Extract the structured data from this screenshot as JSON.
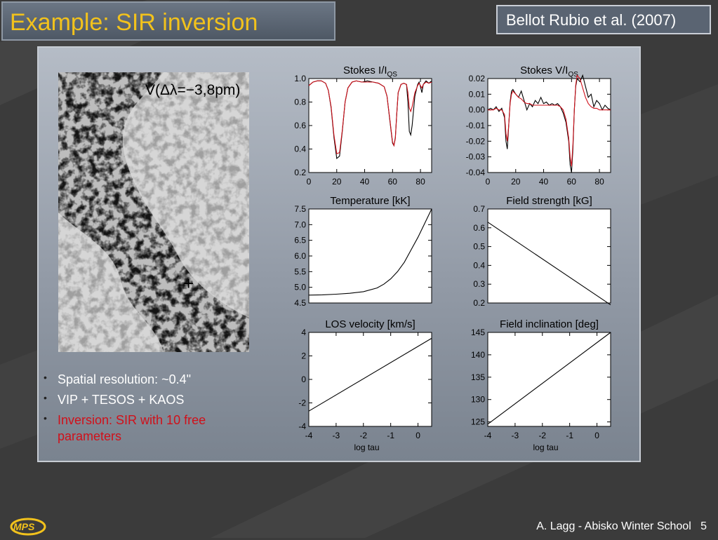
{
  "slide": {
    "title": "Example: SIR inversion",
    "reference": "Bellot Rubio et al. (2007)",
    "footer_text": "A. Lagg - Abisko Winter School",
    "page_number": "5",
    "logo_text": "MPS",
    "title_color": "#f2c21c",
    "bullet_highlight_color": "#d0101a"
  },
  "image": {
    "label": "V(Δλ=−3,8pm)",
    "marker": "+"
  },
  "bullets": [
    {
      "text": "Spatial resolution: ~0.4\"",
      "color": "#ffffff"
    },
    {
      "text": "VIP + TESOS + KAOS",
      "color": "#ffffff"
    },
    {
      "text": "Inversion: SIR with 10 free parameters",
      "color": "#d0101a"
    }
  ],
  "chart_data": [
    {
      "type": "line",
      "title": "Stokes I/I",
      "title_sub": "QS",
      "xlim": [
        0,
        88
      ],
      "ylim": [
        0.2,
        1.0
      ],
      "xticks": [
        0,
        20,
        40,
        60,
        80
      ],
      "yticks": [
        0.2,
        0.4,
        0.6,
        0.8,
        1.0
      ],
      "ytick_labels": [
        "0.2",
        "0.4",
        "0.6",
        "0.8",
        "1.0"
      ],
      "series": [
        {
          "color": "#000000",
          "x": [
            0,
            3,
            6,
            9,
            12,
            14,
            16,
            18,
            20,
            22,
            24,
            26,
            28,
            31,
            34,
            38,
            42,
            46,
            50,
            54,
            56,
            58,
            60,
            61,
            62,
            63,
            64,
            66,
            68,
            70,
            71,
            72,
            73,
            74,
            76,
            78,
            79,
            80,
            81,
            82,
            84,
            86,
            88
          ],
          "y": [
            0.94,
            0.97,
            0.98,
            0.98,
            0.96,
            0.9,
            0.75,
            0.5,
            0.32,
            0.34,
            0.55,
            0.8,
            0.92,
            0.97,
            0.98,
            0.97,
            0.98,
            0.97,
            0.96,
            0.93,
            0.85,
            0.65,
            0.45,
            0.43,
            0.5,
            0.7,
            0.88,
            0.95,
            0.96,
            0.95,
            0.8,
            0.55,
            0.52,
            0.6,
            0.85,
            0.95,
            0.97,
            0.93,
            0.88,
            0.95,
            0.98,
            0.96,
            0.98
          ]
        },
        {
          "color": "#d0101a",
          "x": [
            0,
            3,
            6,
            9,
            12,
            14,
            16,
            18,
            20,
            22,
            24,
            26,
            28,
            31,
            34,
            38,
            42,
            46,
            50,
            54,
            56,
            58,
            60,
            61,
            62,
            63,
            64,
            66,
            68,
            70,
            71,
            72,
            73,
            74,
            76,
            78,
            79,
            80,
            81,
            82,
            84,
            86,
            88
          ],
          "y": [
            0.94,
            0.97,
            0.98,
            0.98,
            0.96,
            0.9,
            0.76,
            0.52,
            0.36,
            0.37,
            0.56,
            0.8,
            0.92,
            0.97,
            0.98,
            0.97,
            0.97,
            0.97,
            0.96,
            0.93,
            0.85,
            0.66,
            0.46,
            0.43,
            0.49,
            0.7,
            0.88,
            0.95,
            0.96,
            0.95,
            0.88,
            0.75,
            0.72,
            0.76,
            0.88,
            0.94,
            0.96,
            0.94,
            0.92,
            0.95,
            0.97,
            0.96,
            0.97
          ]
        }
      ]
    },
    {
      "type": "line",
      "title": "Stokes V/I",
      "title_sub": "QS",
      "xlim": [
        0,
        88
      ],
      "ylim": [
        -0.04,
        0.02
      ],
      "xticks": [
        0,
        20,
        40,
        60,
        80
      ],
      "yticks": [
        -0.04,
        -0.03,
        -0.02,
        -0.01,
        0.0,
        0.01,
        0.02
      ],
      "ytick_labels": [
        "-0.04",
        "-0.03",
        "-0.02",
        "-0.01",
        "0.00",
        "0.01",
        "0.02"
      ],
      "series": [
        {
          "color": "#000000",
          "x": [
            0,
            2,
            4,
            6,
            8,
            10,
            12,
            13,
            14,
            15,
            16,
            17,
            18,
            20,
            22,
            24,
            26,
            28,
            30,
            32,
            34,
            36,
            38,
            40,
            42,
            44,
            46,
            48,
            50,
            52,
            54,
            56,
            58,
            59,
            60,
            61,
            62,
            63,
            64,
            66,
            68,
            70,
            72,
            74,
            76,
            78,
            80,
            82,
            84,
            86,
            88
          ],
          "y": [
            0.0,
            0.001,
            0.0,
            0.002,
            -0.001,
            0.001,
            -0.005,
            -0.02,
            -0.025,
            -0.01,
            0.005,
            0.012,
            0.013,
            0.01,
            0.008,
            0.012,
            0.006,
            0.0,
            0.004,
            0.002,
            0.006,
            0.004,
            0.008,
            0.004,
            0.005,
            0.003,
            0.004,
            0.003,
            0.004,
            0.002,
            -0.002,
            -0.008,
            -0.02,
            -0.035,
            -0.04,
            -0.025,
            0.0,
            0.015,
            0.02,
            0.018,
            0.022,
            0.015,
            0.008,
            0.01,
            0.002,
            0.006,
            0.004,
            0.0,
            0.003,
            0.001,
            0.0
          ]
        },
        {
          "color": "#d0101a",
          "x": [
            0,
            2,
            4,
            6,
            8,
            10,
            12,
            13,
            14,
            15,
            16,
            17,
            18,
            20,
            22,
            24,
            26,
            28,
            30,
            32,
            34,
            36,
            38,
            40,
            42,
            44,
            46,
            48,
            50,
            52,
            54,
            56,
            58,
            59,
            60,
            61,
            62,
            63,
            64,
            66,
            68,
            70,
            72,
            74,
            76,
            78,
            80,
            82,
            84,
            86,
            88
          ],
          "y": [
            0.0,
            0.0,
            0.0,
            0.001,
            0.0,
            0.0,
            -0.003,
            -0.015,
            -0.02,
            -0.01,
            0.004,
            0.01,
            0.012,
            0.01,
            0.008,
            0.007,
            0.005,
            0.004,
            0.004,
            0.003,
            0.003,
            0.003,
            0.003,
            0.003,
            0.003,
            0.003,
            0.003,
            0.003,
            0.003,
            0.002,
            0.0,
            -0.006,
            -0.018,
            -0.03,
            -0.036,
            -0.022,
            0.0,
            0.016,
            0.022,
            0.02,
            0.014,
            0.008,
            0.004,
            0.002,
            0.001,
            0.001,
            0.0,
            0.0,
            0.0,
            0.0,
            0.0
          ]
        }
      ]
    },
    {
      "type": "line",
      "title": "Temperature [kK]",
      "xlim": [
        -4,
        0.5
      ],
      "ylim": [
        4.5,
        7.5
      ],
      "xticks": [],
      "yticks": [
        4.5,
        5.0,
        5.5,
        6.0,
        6.5,
        7.0,
        7.5
      ],
      "ytick_labels": [
        "4.5",
        "5.0",
        "5.5",
        "6.0",
        "6.5",
        "7.0",
        "7.5"
      ],
      "series": [
        {
          "color": "#000000",
          "x": [
            -4,
            -3.5,
            -3,
            -2.5,
            -2,
            -1.5,
            -1.25,
            -1,
            -0.75,
            -0.5,
            -0.25,
            0,
            0.25,
            0.5
          ],
          "y": [
            4.75,
            4.76,
            4.78,
            4.81,
            4.86,
            4.98,
            5.1,
            5.27,
            5.5,
            5.8,
            6.2,
            6.6,
            7.05,
            7.5
          ]
        }
      ]
    },
    {
      "type": "line",
      "title": "Field strength [kG]",
      "xlim": [
        -4,
        0.5
      ],
      "ylim": [
        0.2,
        0.7
      ],
      "xticks": [],
      "yticks": [
        0.2,
        0.3,
        0.4,
        0.5,
        0.6,
        0.7
      ],
      "ytick_labels": [
        "0.2",
        "0.3",
        "0.4",
        "0.5",
        "0.6",
        "0.7"
      ],
      "series": [
        {
          "color": "#000000",
          "x": [
            -4,
            0.5
          ],
          "y": [
            0.63,
            0.19
          ]
        }
      ]
    },
    {
      "type": "line",
      "title": "LOS velocity [km/s]",
      "xlabel": "log tau",
      "xlim": [
        -4,
        0.5
      ],
      "ylim": [
        -4,
        4
      ],
      "xticks": [
        -4,
        -3,
        -2,
        -1,
        0
      ],
      "yticks": [
        -4,
        -2,
        0,
        2,
        4
      ],
      "ytick_labels": [
        "-4",
        "-2",
        "0",
        "2",
        "4"
      ],
      "series": [
        {
          "color": "#000000",
          "x": [
            -4,
            0.5
          ],
          "y": [
            -2.7,
            3.5
          ]
        }
      ]
    },
    {
      "type": "line",
      "title": "Field inclination [deg]",
      "xlabel": "log tau",
      "xlim": [
        -4,
        0.5
      ],
      "ylim": [
        124,
        145
      ],
      "xticks": [
        -4,
        -3,
        -2,
        -1,
        0
      ],
      "yticks": [
        125,
        130,
        135,
        140,
        145
      ],
      "ytick_labels": [
        "125",
        "130",
        "135",
        "140",
        "145"
      ],
      "series": [
        {
          "color": "#000000",
          "x": [
            -4,
            0.5
          ],
          "y": [
            124.5,
            145
          ]
        }
      ]
    }
  ]
}
